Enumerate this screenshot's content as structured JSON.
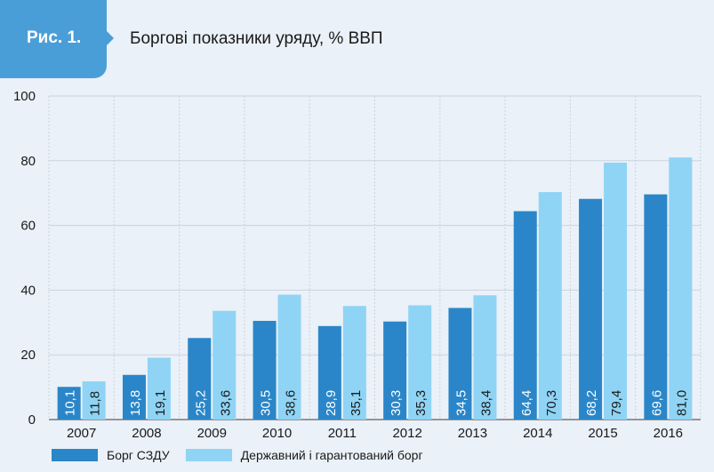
{
  "figure": {
    "label": "Рис. 1.",
    "title": "Боргові показники уряду, % ВВП"
  },
  "colors": {
    "background": "#eaf1f8",
    "tag": "#4a9ed8",
    "series1": "#2a86c8",
    "series2": "#8fd4f5"
  },
  "chart_data": {
    "type": "bar",
    "categories": [
      "2007",
      "2008",
      "2009",
      "2010",
      "2011",
      "2012",
      "2013",
      "2014",
      "2015",
      "2016"
    ],
    "series": [
      {
        "name": "Борг СЗДУ",
        "color": "#2a86c8",
        "values": [
          10.1,
          13.8,
          25.2,
          30.5,
          28.9,
          30.3,
          34.5,
          64.4,
          68.2,
          69.6
        ],
        "labels": [
          "10,1",
          "13,8",
          "25,2",
          "30,5",
          "28,9",
          "30,3",
          "34,5",
          "64,4",
          "68,2",
          "69,6"
        ]
      },
      {
        "name": "Державний і гарантований борг",
        "color": "#8fd4f5",
        "values": [
          11.8,
          19.1,
          33.6,
          38.6,
          35.1,
          35.3,
          38.4,
          70.3,
          79.4,
          81.0
        ],
        "labels": [
          "11,8",
          "19,1",
          "33,6",
          "38,6",
          "35,1",
          "35,3",
          "38,4",
          "70,3",
          "79,4",
          "81,0"
        ]
      }
    ],
    "yticks": [
      "0",
      "20",
      "40",
      "60",
      "80",
      "100"
    ],
    "ylim": [
      0,
      100
    ],
    "grid": true,
    "legend_position": "bottom",
    "data_label_orientation": "vertical"
  }
}
